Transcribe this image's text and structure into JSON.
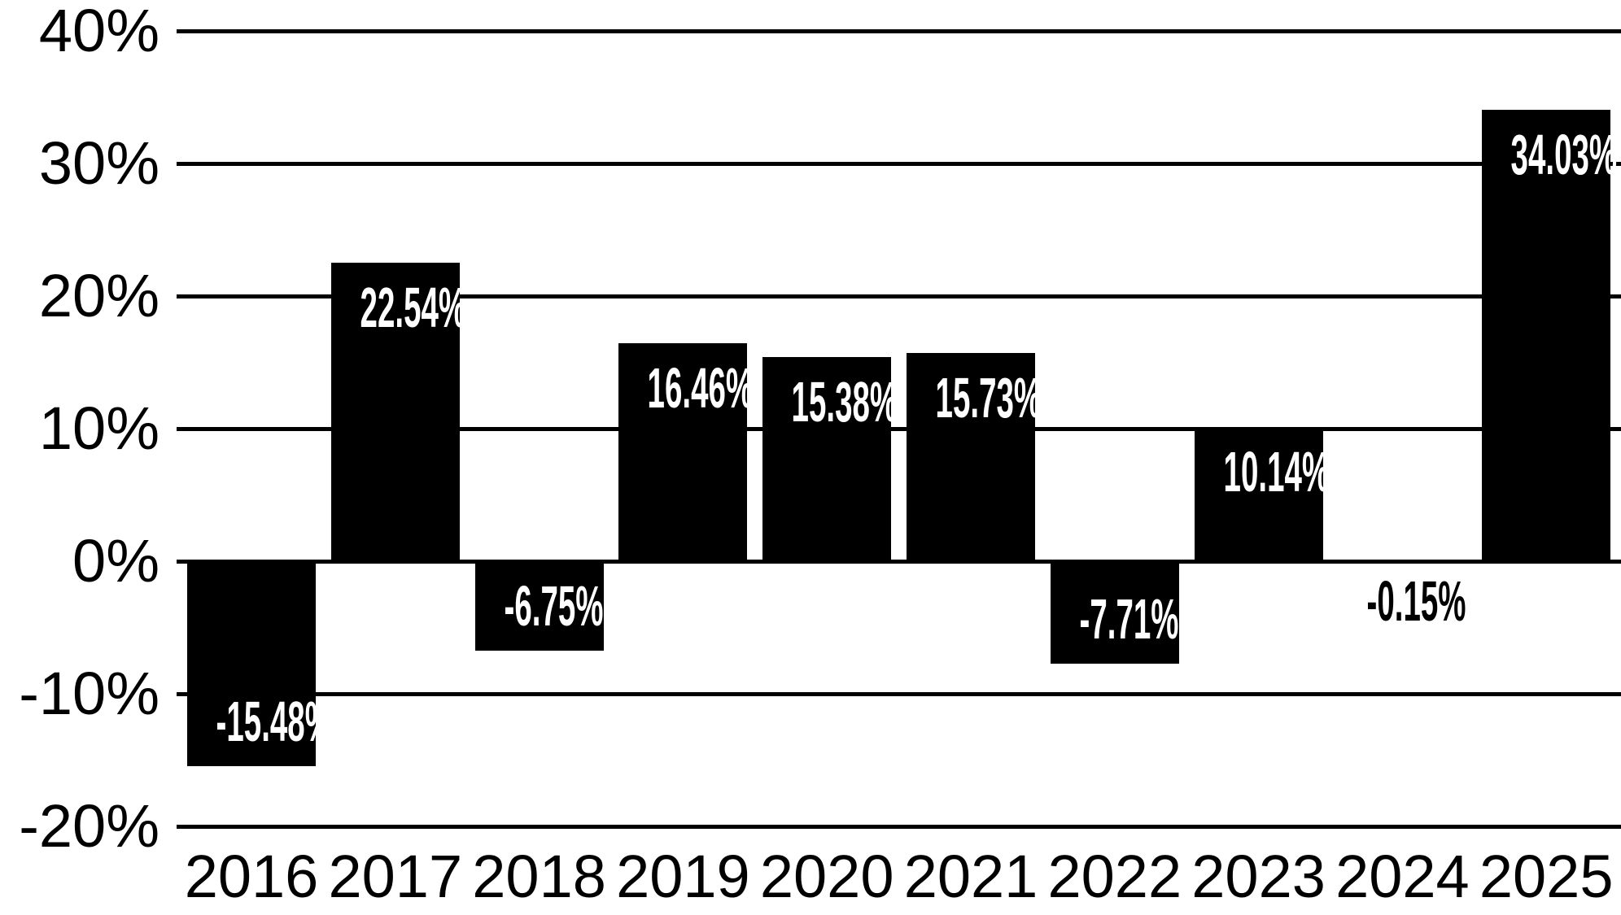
{
  "chart_data": {
    "type": "bar",
    "categories": [
      "2016",
      "2017",
      "2018",
      "2019",
      "2020",
      "2021",
      "2022",
      "2023",
      "2024",
      "2025"
    ],
    "values": [
      -15.48,
      22.54,
      -6.75,
      16.46,
      15.38,
      15.73,
      -7.71,
      10.14,
      -0.15,
      34.03
    ],
    "bar_labels": [
      "-15.48%",
      "22.54%",
      "-6.75%",
      "16.46%",
      "15.38%",
      "15.73%",
      "-7.71%",
      "10.14%",
      "-0.15%",
      "34.03%"
    ],
    "y_ticks": [
      {
        "label": "40%",
        "value": 40
      },
      {
        "label": "30%",
        "value": 30
      },
      {
        "label": "20%",
        "value": 20
      },
      {
        "label": "10%",
        "value": 10
      },
      {
        "label": "0%",
        "value": 0
      },
      {
        "label": "-10%",
        "value": -10
      },
      {
        "label": "-20%",
        "value": -20
      }
    ],
    "ylim": [
      -20,
      40
    ],
    "xlabel": "",
    "ylabel": "",
    "grid": "horizontal",
    "legend": "none",
    "colors": {
      "bar": "#000000",
      "background": "#ffffff",
      "gridline": "#000000",
      "axis_text": "#000000",
      "bar_label_inside": "#ffffff",
      "bar_label_outside": "#000000"
    }
  }
}
